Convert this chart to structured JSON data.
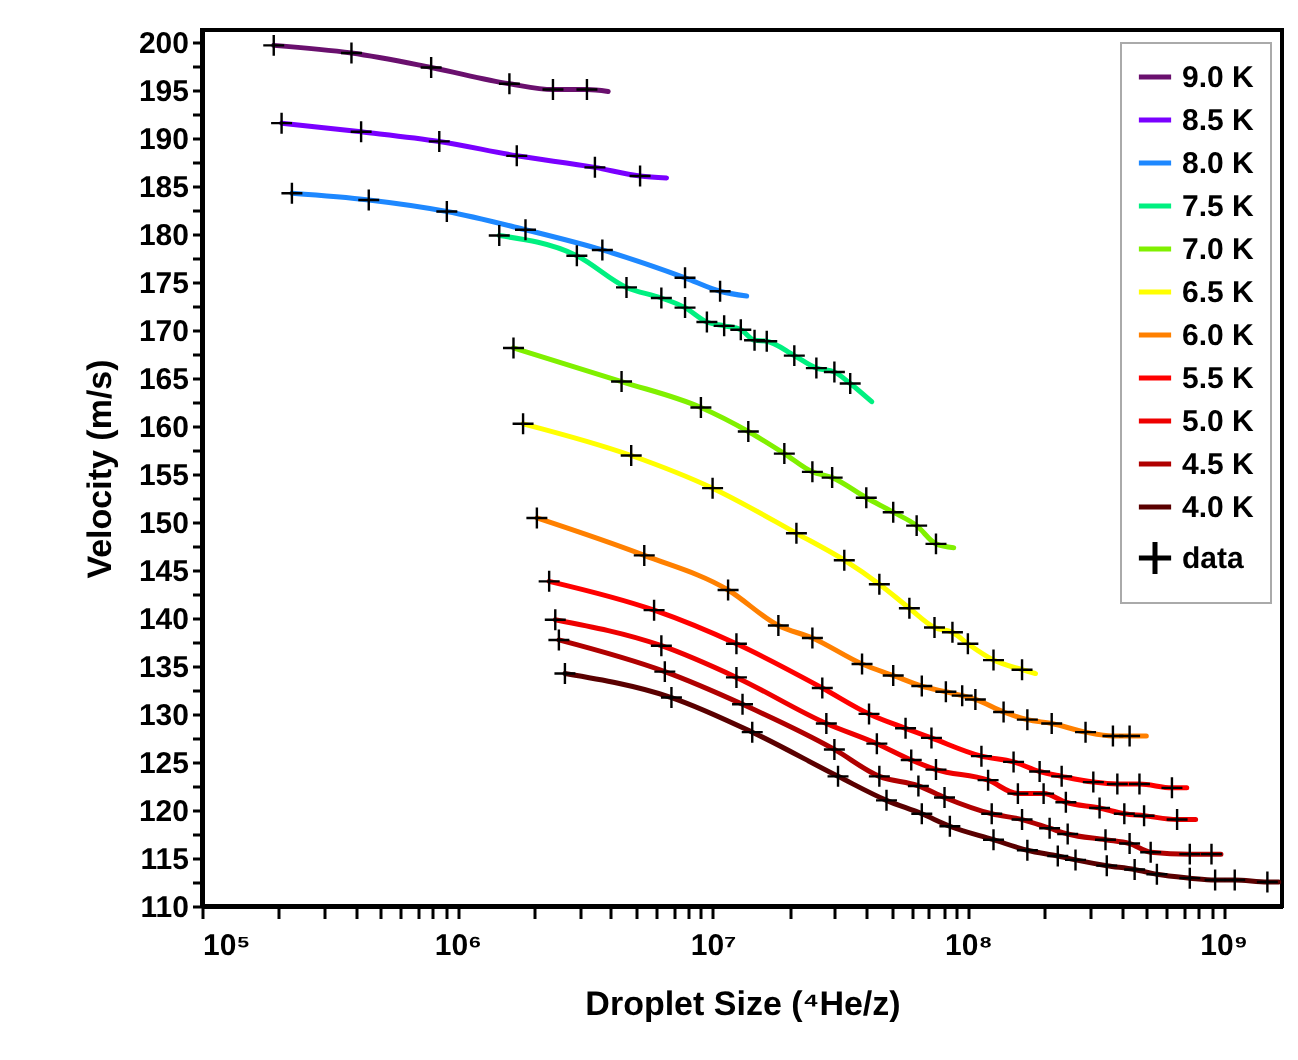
{
  "chart_data": {
    "type": "line",
    "xlabel": "Droplet Size (⁴He/z)",
    "ylabel": "Velocity (m/s)",
    "log": "x",
    "grid": false,
    "legend": "top right",
    "xlim": [
      100000,
      1700000000
    ],
    "xticks": [
      {
        "value": 100000,
        "label": "10⁵"
      },
      {
        "value": 200000,
        "label": null
      },
      {
        "value": 300000,
        "label": null
      },
      {
        "value": 400000,
        "label": null
      },
      {
        "value": 500000,
        "label": null
      },
      {
        "value": 600000,
        "label": null
      },
      {
        "value": 700000,
        "label": null
      },
      {
        "value": 800000,
        "label": null
      },
      {
        "value": 900000,
        "label": null
      },
      {
        "value": 1000000,
        "label": "10⁶"
      },
      {
        "value": 2000000,
        "label": null
      },
      {
        "value": 3000000,
        "label": null
      },
      {
        "value": 4000000,
        "label": null
      },
      {
        "value": 5000000,
        "label": null
      },
      {
        "value": 6000000,
        "label": null
      },
      {
        "value": 7000000,
        "label": null
      },
      {
        "value": 8000000,
        "label": null
      },
      {
        "value": 9000000,
        "label": null
      },
      {
        "value": 10000000,
        "label": "10⁷"
      },
      {
        "value": 20000000,
        "label": null
      },
      {
        "value": 30000000,
        "label": null
      },
      {
        "value": 40000000,
        "label": null
      },
      {
        "value": 50000000,
        "label": null
      },
      {
        "value": 60000000,
        "label": null
      },
      {
        "value": 70000000,
        "label": null
      },
      {
        "value": 80000000,
        "label": null
      },
      {
        "value": 90000000,
        "label": null
      },
      {
        "value": 100000000,
        "label": "10⁸"
      },
      {
        "value": 200000000,
        "label": null
      },
      {
        "value": 300000000,
        "label": null
      },
      {
        "value": 400000000,
        "label": null
      },
      {
        "value": 500000000,
        "label": null
      },
      {
        "value": 600000000,
        "label": null
      },
      {
        "value": 700000000,
        "label": null
      },
      {
        "value": 800000000,
        "label": null
      },
      {
        "value": 900000000,
        "label": null
      },
      {
        "value": 1000000000,
        "label": "10⁹"
      }
    ],
    "ylim": [
      110,
      201.2
    ],
    "yticks": [
      110,
      {
        "value": 112.5,
        "label": null
      },
      115,
      {
        "value": 117.5,
        "label": null
      },
      120,
      {
        "value": 122.5,
        "label": null
      },
      125,
      {
        "value": 127.5,
        "label": null
      },
      130,
      {
        "value": 132.5,
        "label": null
      },
      135,
      {
        "value": 137.5,
        "label": null
      },
      140,
      {
        "value": 142.5,
        "label": null
      },
      145,
      {
        "value": 147.5,
        "label": null
      },
      150,
      {
        "value": 152.5,
        "label": null
      },
      155,
      {
        "value": 157.5,
        "label": null
      },
      160,
      {
        "value": 162.5,
        "label": null
      },
      165,
      {
        "value": 167.5,
        "label": null
      },
      170,
      {
        "value": 172.5,
        "label": null
      },
      175,
      {
        "value": 177.5,
        "label": null
      },
      180,
      {
        "value": 182.5,
        "label": null
      },
      185,
      {
        "value": 187.5,
        "label": null
      },
      190,
      {
        "value": 192.5,
        "label": null
      },
      195,
      {
        "value": 197.5,
        "label": null
      },
      200
    ],
    "series": [
      {
        "name": "9.0 K",
        "color": "#6a106e",
        "x": [
          191000.0,
          385000.0,
          790000.0,
          1600000.0,
          2370000.0,
          3220000.0,
          3900000.0
        ],
        "values": [
          199.6,
          198.8,
          197.3,
          195.6,
          195.0,
          195.0,
          194.8
        ]
      },
      {
        "name": "8.5 K",
        "color": "#7a00ff",
        "x": [
          205000.0,
          420000.0,
          850000.0,
          1710000.0,
          3460000.0,
          5200000.0,
          6600000.0
        ],
        "values": [
          191.5,
          190.6,
          189.6,
          188.1,
          186.9,
          186.0,
          185.8
        ]
      },
      {
        "name": "8.0 K",
        "color": "#1e88ff",
        "x": [
          225000.0,
          450000.0,
          910000.0,
          1850000.0,
          3700000.0,
          7800000.0,
          10700000.0,
          13600000.0
        ],
        "values": [
          184.2,
          183.5,
          182.3,
          180.4,
          178.3,
          175.4,
          174.0,
          173.5
        ]
      },
      {
        "name": "7.5 K",
        "color": "#00f080",
        "x": [
          1460000.0,
          2940000.0,
          4600000.0,
          6300000.0,
          7800000.0,
          9500000.0,
          11100000.0,
          12900000.0,
          14600000.0,
          16300000.0,
          20900000.0,
          25500000.0,
          30000000.0,
          34600000.0,
          42000000.0
        ],
        "values": [
          179.8,
          177.7,
          174.4,
          173.3,
          172.3,
          170.8,
          170.4,
          170.0,
          168.9,
          168.8,
          167.3,
          166.0,
          165.6,
          164.4,
          162.5
        ]
      },
      {
        "name": "7.0 K",
        "color": "#80f000",
        "x": [
          1660000.0,
          4400000.0,
          9000000.0,
          13800000.0,
          19100000.0,
          24600000.0,
          29400000.0,
          40000000.0,
          51000000.0,
          63000000.0,
          75000000.0,
          88000000.0
        ],
        "values": [
          168.1,
          164.6,
          161.9,
          159.4,
          157.1,
          155.2,
          154.6,
          152.5,
          151.0,
          149.6,
          147.7,
          147.3
        ]
      },
      {
        "name": "6.5 K",
        "color": "#ffff00",
        "x": [
          1810000.0,
          4800000.0,
          10000000.0,
          21300000.0,
          32800000.0,
          45000000.0,
          59000000.0,
          74000000.0,
          87000000.0,
          100000000.0,
          126000000.0,
          163000000.0,
          184000000.0
        ],
        "values": [
          160.2,
          156.9,
          153.5,
          148.8,
          146.0,
          143.5,
          141.0,
          139.0,
          138.5,
          137.3,
          135.6,
          134.6,
          134.2
        ]
      },
      {
        "name": "6.0 K",
        "color": "#ff8000",
        "x": [
          2050000.0,
          5400000.0,
          11500000.0,
          18100000.0,
          24600000.0,
          38500000.0,
          51000000.0,
          66000000.0,
          82000000.0,
          95000000.0,
          107000000.0,
          138000000.0,
          171000000.0,
          213000000.0,
          289000000.0,
          370000000.0,
          430000000.0,
          500000000.0
        ],
        "values": [
          150.4,
          146.5,
          142.9,
          139.2,
          137.9,
          135.2,
          134.0,
          132.9,
          132.3,
          131.9,
          131.5,
          130.2,
          129.4,
          129.0,
          128.1,
          127.7,
          127.7,
          127.7
        ]
      },
      {
        "name": "5.5 K",
        "color": "#ff0000",
        "x": [
          2290000.0,
          5900000.0,
          12400000.0,
          26900000.0,
          41000000.0,
          57000000.0,
          72000000.0,
          113000000.0,
          151000000.0,
          191000000.0,
          233000000.0,
          310000000.0,
          385000000.0,
          470000000.0,
          630000000.0,
          720000000.0
        ],
        "values": [
          143.8,
          140.8,
          137.3,
          132.7,
          130.0,
          128.5,
          127.5,
          125.6,
          125.0,
          124.0,
          123.5,
          122.9,
          122.7,
          122.7,
          122.3,
          122.3
        ]
      },
      {
        "name": "5.0 K",
        "color": "#ee0000",
        "x": [
          2420000.0,
          6300000.0,
          12400000.0,
          27900000.0,
          44000000.0,
          60000000.0,
          75000000.0,
          120000000.0,
          157000000.0,
          198000000.0,
          242000000.0,
          328000000.0,
          410000000.0,
          490000000.0,
          660000000.0,
          780000000.0
        ],
        "values": [
          139.8,
          137.1,
          133.8,
          129.0,
          126.9,
          125.2,
          124.2,
          123.1,
          121.7,
          121.7,
          120.8,
          120.2,
          119.6,
          119.4,
          119.0,
          119.0
        ]
      },
      {
        "name": "4.5 K",
        "color": "#b00000",
        "x": [
          2500000.0,
          6500000.0,
          13100000.0,
          30000000.0,
          45000000.0,
          64000000.0,
          81000000.0,
          124000000.0,
          163000000.0,
          209000000.0,
          246000000.0,
          346000000.0,
          430000000.0,
          520000000.0,
          740000000.0,
          900000000.0,
          980000000.0
        ],
        "values": [
          137.7,
          134.4,
          131.0,
          126.3,
          123.5,
          122.5,
          121.3,
          119.6,
          119.0,
          118.1,
          117.5,
          116.9,
          116.5,
          115.6,
          115.4,
          115.4,
          115.4
        ]
      },
      {
        "name": "4.0 K",
        "color": "#5a0000",
        "x": [
          2640000.0,
          6900000.0,
          14300000.0,
          31000000.0,
          48000000.0,
          66000000.0,
          85000000.0,
          126000000.0,
          171000000.0,
          225000000.0,
          264000000.0,
          350000000.0,
          450000000.0,
          550000000.0,
          740000000.0,
          930000000.0,
          1110000000.0,
          1490000000.0,
          1650000000.0
        ],
        "values": [
          134.2,
          131.7,
          128.1,
          123.5,
          121.0,
          119.6,
          118.3,
          116.9,
          115.8,
          115.2,
          114.8,
          114.2,
          113.8,
          113.3,
          112.9,
          112.7,
          112.7,
          112.5,
          112.5
        ]
      },
      {
        "name": "data",
        "type": "scatter",
        "marker": "cross",
        "color": "#000000",
        "x": [
          191000.0,
          385000.0,
          790000.0,
          1600000.0,
          2370000.0,
          3220000.0,
          205000.0,
          420000.0,
          850000.0,
          1710000.0,
          3460000.0,
          5200000.0,
          225000.0,
          450000.0,
          910000.0,
          1850000.0,
          3700000.0,
          7800000.0,
          10700000.0,
          1460000.0,
          2940000.0,
          4600000.0,
          6300000.0,
          7800000.0,
          9500000.0,
          11100000.0,
          12900000.0,
          14600000.0,
          16300000.0,
          20900000.0,
          25500000.0,
          30000000.0,
          34600000.0,
          1660000.0,
          4400000.0,
          9000000.0,
          13800000.0,
          19100000.0,
          24600000.0,
          29400000.0,
          40000000.0,
          51000000.0,
          63000000.0,
          75000000.0,
          1810000.0,
          4800000.0,
          10000000.0,
          21300000.0,
          32800000.0,
          45000000.0,
          59000000.0,
          74000000.0,
          87000000.0,
          100000000.0,
          126000000.0,
          163000000.0,
          2050000.0,
          5400000.0,
          11500000.0,
          18100000.0,
          24600000.0,
          38500000.0,
          51000000.0,
          66000000.0,
          82000000.0,
          95000000.0,
          107000000.0,
          138000000.0,
          171000000.0,
          213000000.0,
          289000000.0,
          370000000.0,
          430000000.0,
          2290000.0,
          5900000.0,
          12400000.0,
          26900000.0,
          41000000.0,
          57000000.0,
          72000000.0,
          113000000.0,
          151000000.0,
          191000000.0,
          233000000.0,
          310000000.0,
          385000000.0,
          470000000.0,
          630000000.0,
          2420000.0,
          6300000.0,
          12400000.0,
          27900000.0,
          44000000.0,
          60000000.0,
          75000000.0,
          120000000.0,
          157000000.0,
          198000000.0,
          242000000.0,
          328000000.0,
          410000000.0,
          490000000.0,
          660000000.0,
          2500000.0,
          6500000.0,
          13100000.0,
          30000000.0,
          45000000.0,
          64000000.0,
          81000000.0,
          124000000.0,
          163000000.0,
          209000000.0,
          246000000.0,
          346000000.0,
          430000000.0,
          520000000.0,
          740000000.0,
          900000000.0,
          2640000.0,
          6900000.0,
          14300000.0,
          31000000.0,
          48000000.0,
          66000000.0,
          85000000.0,
          126000000.0,
          171000000.0,
          225000000.0,
          264000000.0,
          350000000.0,
          450000000.0,
          550000000.0,
          740000000.0,
          930000000.0,
          1110000000.0,
          1490000000.0
        ],
        "values": [
          199.6,
          198.8,
          197.3,
          195.6,
          195.0,
          195.0,
          191.5,
          190.6,
          189.6,
          188.1,
          186.9,
          186.0,
          184.2,
          183.5,
          182.3,
          180.4,
          178.3,
          175.4,
          174.0,
          179.8,
          177.7,
          174.4,
          173.3,
          172.3,
          170.8,
          170.4,
          170.0,
          168.9,
          168.8,
          167.3,
          166.0,
          165.6,
          164.4,
          168.1,
          164.6,
          161.9,
          159.4,
          157.1,
          155.2,
          154.6,
          152.5,
          151.0,
          149.6,
          147.7,
          160.2,
          156.9,
          153.5,
          148.8,
          146.0,
          143.5,
          141.0,
          139.0,
          138.5,
          137.3,
          135.6,
          134.6,
          150.4,
          146.5,
          142.9,
          139.2,
          137.9,
          135.2,
          134.0,
          132.9,
          132.3,
          131.9,
          131.5,
          130.2,
          129.4,
          129.0,
          128.1,
          127.7,
          127.7,
          143.8,
          140.8,
          137.3,
          132.7,
          130.0,
          128.5,
          127.5,
          125.6,
          125.0,
          124.0,
          123.5,
          122.9,
          122.7,
          122.7,
          122.3,
          139.8,
          137.1,
          133.8,
          129.0,
          126.9,
          125.2,
          124.2,
          123.1,
          121.7,
          121.7,
          120.8,
          120.2,
          119.6,
          119.4,
          119.0,
          137.7,
          134.4,
          131.0,
          126.3,
          123.5,
          122.5,
          121.3,
          119.6,
          119.0,
          118.1,
          117.5,
          116.9,
          116.5,
          115.6,
          115.4,
          115.4,
          134.2,
          131.7,
          128.1,
          123.5,
          121.0,
          119.6,
          118.3,
          116.9,
          115.8,
          115.2,
          114.8,
          114.2,
          113.8,
          113.3,
          112.9,
          112.7,
          112.7,
          112.5
        ]
      }
    ]
  }
}
